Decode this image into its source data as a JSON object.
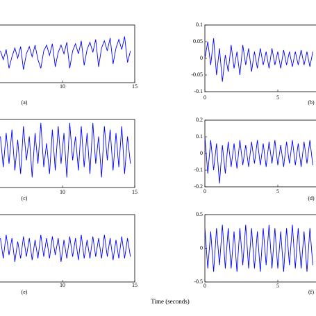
{
  "chart_data": [
    {
      "type": "line",
      "label": "(a)",
      "color": "#0000ff",
      "xlim": [
        0,
        15
      ],
      "xticks": [
        10,
        15
      ],
      "ylim": [
        -1,
        1
      ],
      "x": [
        5.7,
        5.9,
        6.1,
        6.3,
        6.5,
        6.7,
        6.9,
        7.1,
        7.3,
        7.5,
        7.7,
        7.9,
        8.1,
        8.3,
        8.5,
        8.7,
        8.9,
        9.1,
        9.3,
        9.5,
        9.7,
        9.9,
        10.1,
        10.3,
        10.5,
        10.7,
        10.9,
        11.1,
        11.3,
        11.5,
        11.7,
        11.9,
        12.1,
        12.3,
        12.5,
        12.7,
        12.9,
        13.1,
        13.3,
        13.5,
        13.7,
        13.9,
        14.1,
        14.3,
        14.5,
        14.7
      ],
      "values": [
        0.1,
        -0.2,
        0.15,
        -0.5,
        -0.1,
        0.2,
        -0.15,
        0.25,
        -0.55,
        0,
        0.25,
        -0.1,
        0.3,
        -0.2,
        -0.5,
        0.1,
        0.3,
        -0.05,
        0.35,
        -0.45,
        0.05,
        0.3,
        0,
        0.4,
        -0.5,
        0.1,
        0.35,
        0,
        0.45,
        -0.4,
        0.15,
        0.4,
        0.05,
        0.5,
        -0.45,
        0.2,
        0.45,
        0.1,
        0.55,
        -0.35,
        0.2,
        0.5,
        0.15,
        0.6,
        -0.3,
        0.1
      ]
    },
    {
      "type": "line",
      "label": "(b)",
      "color": "#0000ff",
      "xlim": [
        0,
        10
      ],
      "xticks": [
        0,
        5
      ],
      "ylim": [
        -0.1,
        0.1
      ],
      "yticks": [
        0.1,
        0.05,
        0,
        -0.05,
        -0.1
      ],
      "x": [
        0,
        0.2,
        0.4,
        0.6,
        0.8,
        1,
        1.2,
        1.4,
        1.6,
        1.8,
        2,
        2.2,
        2.4,
        2.6,
        2.8,
        3,
        3.2,
        3.4,
        3.6,
        3.8,
        4,
        4.2,
        4.4,
        4.6,
        4.8,
        5,
        5.2,
        5.4,
        5.6,
        5.8,
        6,
        6.2,
        6.4,
        6.6,
        6.8,
        7,
        7.2,
        7.4
      ],
      "values": [
        0,
        0.05,
        -0.02,
        0.06,
        -0.05,
        0.03,
        -0.07,
        0.01,
        -0.04,
        0.04,
        -0.03,
        0.02,
        -0.05,
        0.04,
        -0.02,
        0.03,
        -0.04,
        0.02,
        -0.03,
        0.03,
        -0.02,
        0.02,
        -0.03,
        0.03,
        -0.02,
        0.02,
        -0.03,
        0.025,
        -0.02,
        0.02,
        -0.025,
        0.02,
        -0.02,
        0.025,
        -0.02,
        0.02,
        -0.025,
        0.02
      ]
    },
    {
      "type": "line",
      "label": "(c)",
      "color": "#0000ff",
      "xlim": [
        0,
        15
      ],
      "xticks": [
        10,
        15
      ],
      "ylim": [
        -1,
        1
      ],
      "x": [
        5.7,
        5.9,
        6.1,
        6.3,
        6.5,
        6.7,
        6.9,
        7.1,
        7.3,
        7.5,
        7.7,
        7.9,
        8.1,
        8.3,
        8.5,
        8.7,
        8.9,
        9.1,
        9.3,
        9.5,
        9.7,
        9.9,
        10.1,
        10.3,
        10.5,
        10.7,
        10.9,
        11.1,
        11.3,
        11.5,
        11.7,
        11.9,
        12.1,
        12.3,
        12.5,
        12.7,
        12.9,
        13.1,
        13.3,
        13.5,
        13.7,
        13.9,
        14.1,
        14.3,
        14.5,
        14.7
      ],
      "values": [
        0.5,
        -0.4,
        0.6,
        -0.3,
        0.7,
        -0.5,
        0.4,
        -0.6,
        0.8,
        -0.2,
        0.5,
        -0.7,
        0.6,
        -0.3,
        0.9,
        -0.4,
        0.3,
        -0.6,
        0.7,
        -0.5,
        0.8,
        -0.3,
        0.6,
        -0.7,
        0.9,
        -0.2,
        0.5,
        -0.5,
        0.8,
        -0.4,
        0.6,
        -0.6,
        0.9,
        -0.3,
        0.5,
        -0.7,
        0.8,
        -0.2,
        0.7,
        -0.5,
        0.6,
        -0.4,
        0.8,
        -0.6,
        0.5,
        -0.3
      ]
    },
    {
      "type": "line",
      "label": "(d)",
      "color": "#0000ff",
      "xlim": [
        0,
        10
      ],
      "xticks": [
        0,
        5
      ],
      "ylim": [
        -0.2,
        0.2
      ],
      "yticks": [
        0.2,
        0.1,
        0,
        -0.1,
        -0.2
      ],
      "x": [
        0,
        0.2,
        0.4,
        0.6,
        0.8,
        1,
        1.2,
        1.4,
        1.6,
        1.8,
        2,
        2.2,
        2.4,
        2.6,
        2.8,
        3,
        3.2,
        3.4,
        3.6,
        3.8,
        4,
        4.2,
        4.4,
        4.6,
        4.8,
        5,
        5.2,
        5.4,
        5.6,
        5.8,
        6,
        6.2,
        6.4,
        6.6,
        6.8,
        7,
        7.2,
        7.4
      ],
      "values": [
        0.1,
        -0.12,
        0.08,
        -0.1,
        0.06,
        -0.18,
        0.05,
        -0.12,
        0.07,
        -0.08,
        0.06,
        -0.09,
        0.08,
        -0.07,
        0.05,
        -0.08,
        0.07,
        -0.06,
        0.08,
        -0.07,
        0.06,
        -0.08,
        0.07,
        -0.06,
        0.08,
        -0.07,
        0.05,
        -0.08,
        0.07,
        -0.06,
        0.08,
        -0.07,
        0.06,
        -0.08,
        0.07,
        -0.06,
        0.08,
        -0.07
      ]
    },
    {
      "type": "line",
      "label": "(e)",
      "color": "#0000ff",
      "xlim": [
        0,
        15
      ],
      "xticks": [
        10,
        15
      ],
      "ylim": [
        -1,
        1
      ],
      "x": [
        5.7,
        5.9,
        6.1,
        6.3,
        6.5,
        6.7,
        6.9,
        7.1,
        7.3,
        7.5,
        7.7,
        7.9,
        8.1,
        8.3,
        8.5,
        8.7,
        8.9,
        9.1,
        9.3,
        9.5,
        9.7,
        9.9,
        10.1,
        10.3,
        10.5,
        10.7,
        10.9,
        11.1,
        11.3,
        11.5,
        11.7,
        11.9,
        12.1,
        12.3,
        12.5,
        12.7,
        12.9,
        13.1,
        13.3,
        13.5,
        13.7,
        13.9,
        14.1,
        14.3,
        14.5,
        14.7
      ],
      "values": [
        0.3,
        -0.3,
        0.4,
        -0.2,
        0.3,
        -0.4,
        0.2,
        -0.3,
        0.35,
        -0.25,
        0.3,
        -0.35,
        0.25,
        -0.3,
        0.4,
        -0.25,
        0.3,
        -0.3,
        0.35,
        -0.2,
        0.3,
        -0.4,
        0.25,
        -0.3,
        0.35,
        -0.25,
        0.3,
        -0.35,
        0.4,
        -0.3,
        0.25,
        -0.3,
        0.35,
        -0.25,
        0.3,
        -0.3,
        0.4,
        -0.25,
        0.3,
        -0.35,
        0.25,
        -0.3,
        0.35,
        -0.3,
        0.3,
        -0.25
      ]
    },
    {
      "type": "line",
      "label": "(f)",
      "color": "#0000ff",
      "xlim": [
        0,
        10
      ],
      "xticks": [
        0,
        5
      ],
      "ylim": [
        -0.5,
        0.5
      ],
      "yticks": [
        0.5,
        0,
        -0.5
      ],
      "x": [
        0,
        0.2,
        0.4,
        0.6,
        0.8,
        1,
        1.2,
        1.4,
        1.6,
        1.8,
        2,
        2.2,
        2.4,
        2.6,
        2.8,
        3,
        3.2,
        3.4,
        3.6,
        3.8,
        4,
        4.2,
        4.4,
        4.6,
        4.8,
        5,
        5.2,
        5.4,
        5.6,
        5.8,
        6,
        6.2,
        6.4,
        6.6,
        6.8,
        7,
        7.2,
        7.4
      ],
      "values": [
        0.3,
        -0.3,
        0.25,
        -0.35,
        0.3,
        -0.25,
        0.35,
        -0.3,
        0.3,
        -0.3,
        0.25,
        -0.35,
        0.3,
        -0.25,
        0.35,
        -0.3,
        0.3,
        -0.3,
        0.25,
        -0.35,
        0.3,
        -0.25,
        0.35,
        -0.3,
        0.3,
        -0.3,
        0.25,
        -0.35,
        0.3,
        -0.25,
        0.35,
        -0.3,
        0.3,
        -0.3,
        0.25,
        -0.35,
        0.3,
        -0.25
      ]
    }
  ],
  "xlabel": "Time (seconds)"
}
